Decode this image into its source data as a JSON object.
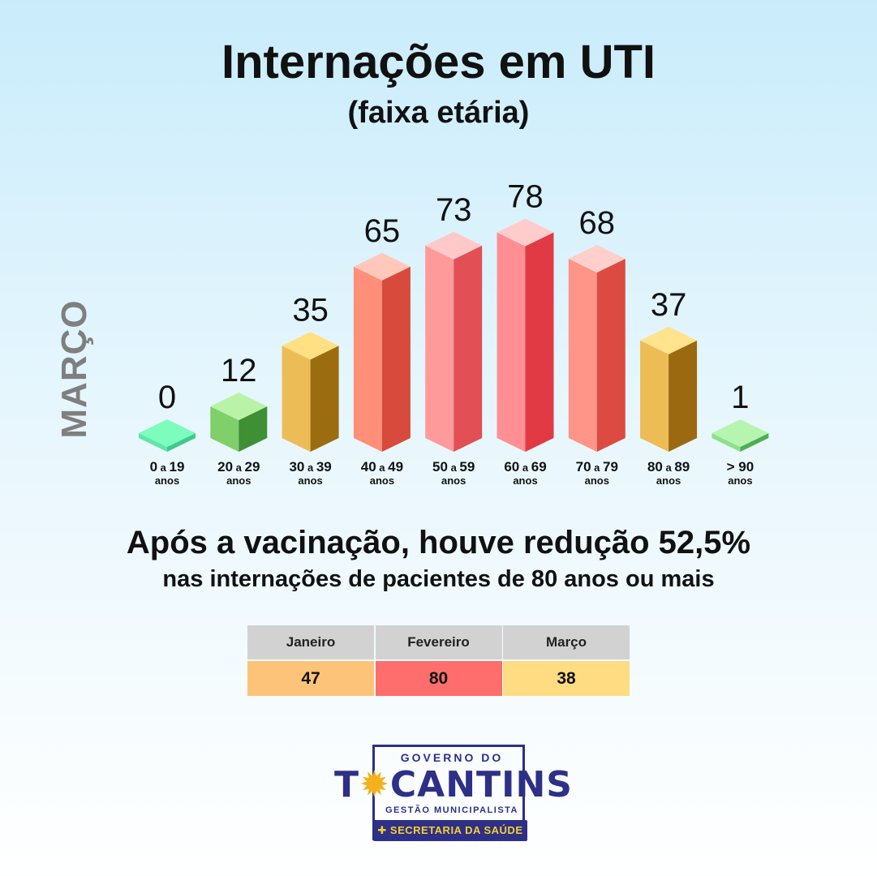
{
  "header": {
    "title": "Internações em UTI",
    "subtitle": "(faixa etária)"
  },
  "side_label": "MARÇO",
  "chart_data": {
    "type": "bar",
    "title": "Internações em UTI",
    "subtitle": "(faixa etária)",
    "series_label": "MARÇO",
    "categories": [
      {
        "main": "0",
        "mid": "a",
        "end": "19",
        "unit": "anos"
      },
      {
        "main": "20",
        "mid": "a",
        "end": "29",
        "unit": "anos"
      },
      {
        "main": "30",
        "mid": "a",
        "end": "39",
        "unit": "anos"
      },
      {
        "main": "40",
        "mid": "a",
        "end": "49",
        "unit": "anos"
      },
      {
        "main": "50",
        "mid": "a",
        "end": "59",
        "unit": "anos"
      },
      {
        "main": "60",
        "mid": "a",
        "end": "69",
        "unit": "anos"
      },
      {
        "main": "70",
        "mid": "a",
        "end": "79",
        "unit": "anos"
      },
      {
        "main": "80",
        "mid": "a",
        "end": "89",
        "unit": "anos"
      },
      {
        "main": "> 90",
        "mid": "",
        "end": "",
        "unit": "anos"
      }
    ],
    "values": [
      0,
      12,
      35,
      65,
      73,
      78,
      68,
      37,
      1
    ],
    "bar_colors": [
      {
        "top": "#7dfdbd",
        "front": "#5fe6a8",
        "side": "#43c88c"
      },
      {
        "top": "#b9f3a7",
        "front": "#7fcf6b",
        "side": "#3f8f35"
      },
      {
        "top": "#ffe083",
        "front": "#ecbd57",
        "side": "#9c6c10"
      },
      {
        "top": "#ffc8ba",
        "front": "#ff8f79",
        "side": "#d84a3b"
      },
      {
        "top": "#ffc9c9",
        "front": "#ff9a9a",
        "side": "#e24f55"
      },
      {
        "top": "#ffcccc",
        "front": "#ff8f93",
        "side": "#e23a45"
      },
      {
        "top": "#ffcfcb",
        "front": "#ff9488",
        "side": "#dc4a42"
      },
      {
        "top": "#ffe38d",
        "front": "#edbc55",
        "side": "#9b6a10"
      },
      {
        "top": "#b5f5b0",
        "front": "#8ee08c",
        "side": "#4fae55"
      }
    ]
  },
  "headline": "Após a vacinação, houve redução 52,5%",
  "subheadline": "nas internações de pacientes de 80 anos ou mais",
  "table": {
    "headers": [
      "Janeiro",
      "Fevereiro",
      "Março"
    ],
    "values": [
      "47",
      "80",
      "38"
    ],
    "colors": [
      "#fdc479",
      "#fd6e6c",
      "#fddc82"
    ]
  },
  "logo": {
    "top": "GOVERNO DO",
    "main_before": "T",
    "main_after": "CANTINS",
    "sub": "GESTÃO MUNICIPALISTA",
    "bar": "SECRETARIA DA SAÚDE"
  }
}
